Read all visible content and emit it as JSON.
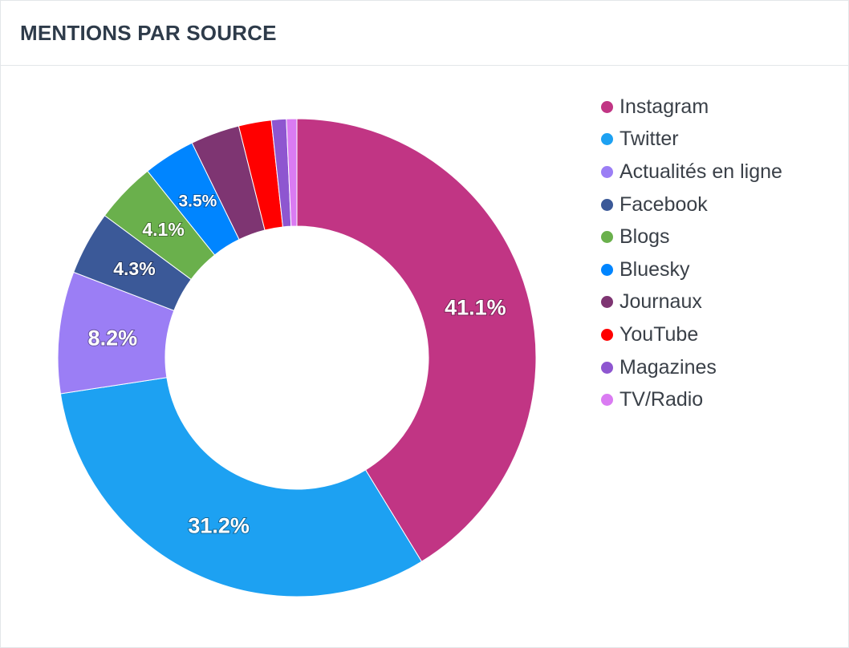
{
  "header": {
    "title": "MENTIONS PAR SOURCE"
  },
  "chart_data": {
    "type": "pie",
    "title": "MENTIONS PAR SOURCE",
    "donut": true,
    "legend_position": "right",
    "categories": [
      "Instagram",
      "Twitter",
      "Actualités en ligne",
      "Facebook",
      "Blogs",
      "Bluesky",
      "Journaux",
      "YouTube",
      "Magazines",
      "TV/Radio"
    ],
    "values": [
      41.1,
      31.2,
      8.2,
      4.3,
      4.1,
      3.5,
      3.3,
      2.2,
      1.0,
      0.7
    ],
    "data_labels": [
      "41.1%",
      "31.2%",
      "8.2%",
      "4.3%",
      "4.1%",
      "3.5%",
      "",
      "",
      "",
      ""
    ],
    "colors": [
      "#c13584",
      "#1da1f2",
      "#9b7ef5",
      "#3b5998",
      "#6ab04c",
      "#0085ff",
      "#7e3572",
      "#ff0000",
      "#8e56d0",
      "#da7bf2"
    ]
  }
}
